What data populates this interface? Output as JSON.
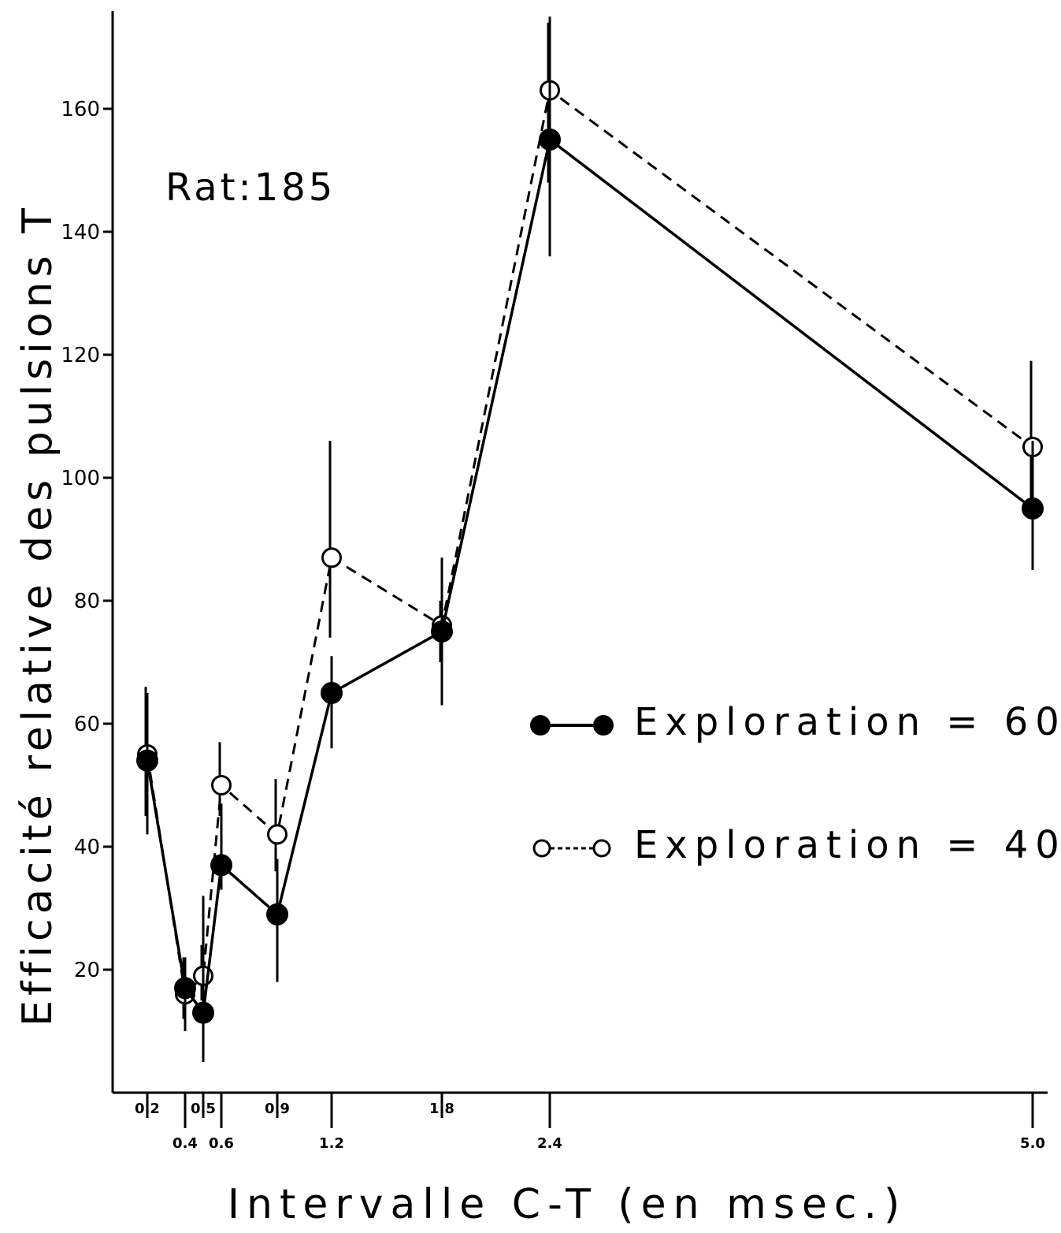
{
  "chart_data": {
    "type": "line",
    "annotation": "Rat:185",
    "xlabel": "Intervalle C-T (en msec.)",
    "ylabel": "Efficacité relative des pulsions T",
    "ylim": [
      0,
      175
    ],
    "yticks": [
      20,
      40,
      60,
      80,
      100,
      120,
      140,
      160
    ],
    "x_ticks_upper": [
      "0.2",
      "0.5",
      "0.9",
      "1.8"
    ],
    "x_ticks_lower": [
      "0.4",
      "0.6",
      "1.2",
      "2.4",
      "5.0"
    ],
    "x": [
      0.2,
      0.4,
      0.5,
      0.6,
      0.9,
      1.2,
      1.8,
      2.4,
      5.0
    ],
    "series": [
      {
        "name": "Exploration = 60",
        "marker": "filled",
        "line": "solid",
        "values": [
          54,
          17,
          13,
          37,
          29,
          65,
          75,
          155,
          95
        ],
        "error_low": [
          42,
          10,
          5,
          33,
          18,
          56,
          63,
          136,
          85
        ],
        "error_high": [
          65,
          22,
          32,
          47,
          38,
          71,
          87,
          175,
          106
        ]
      },
      {
        "name": "Exploration = 40",
        "marker": "open",
        "line": "dashed",
        "values": [
          55,
          16,
          19,
          50,
          42,
          87,
          76,
          163,
          105
        ],
        "error_low": [
          45,
          12,
          15,
          45,
          36,
          74,
          70,
          148,
          96
        ],
        "error_high": [
          66,
          22,
          24,
          57,
          51,
          106,
          80,
          174,
          119
        ]
      }
    ],
    "legend_position": "right-middle"
  }
}
